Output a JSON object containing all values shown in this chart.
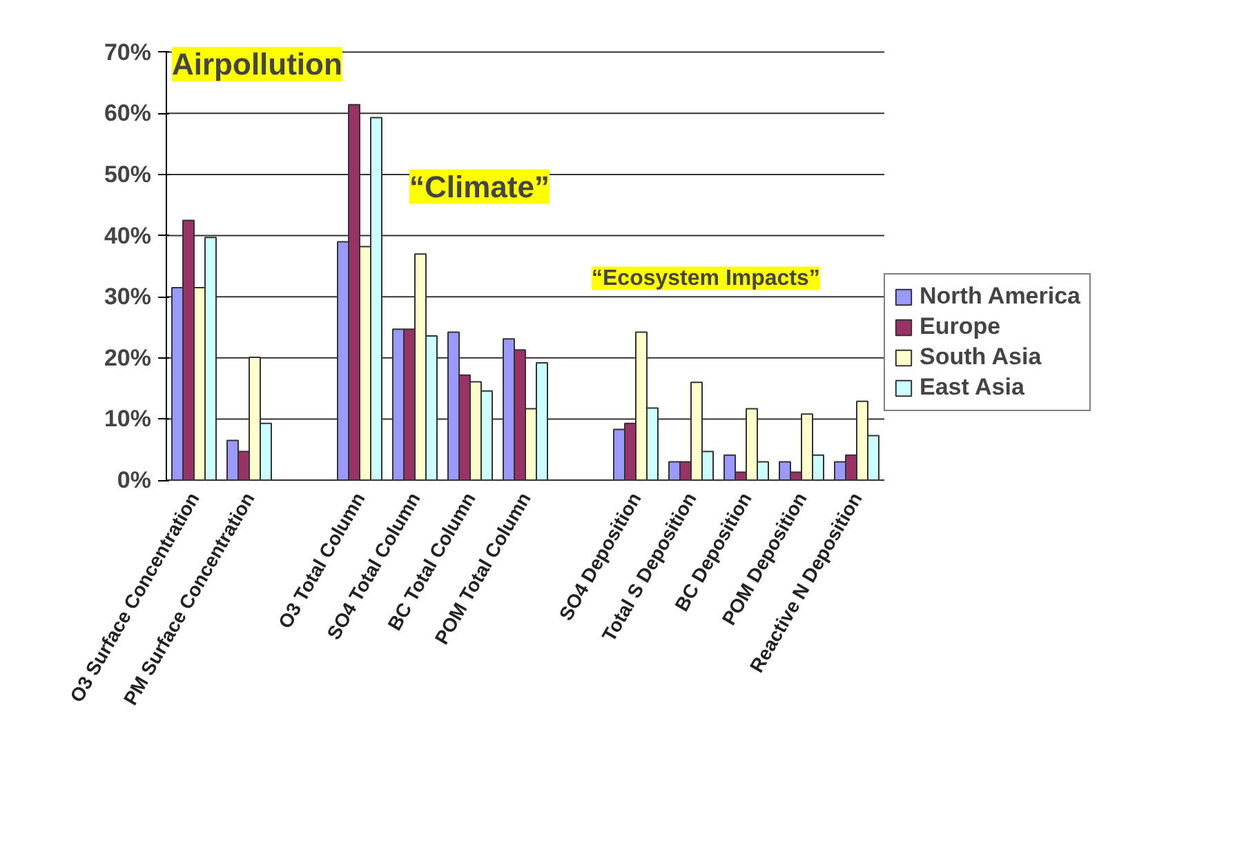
{
  "chart_data": {
    "type": "bar",
    "categories": [
      "O3 Surface Concentration",
      "PM Surface Concentration",
      null,
      "O3 Total Column",
      "SO4 Total Column",
      "BC Total Column",
      "POM Total Column",
      null,
      "SO4 Deposition",
      "Total S Deposition",
      "BC Deposition",
      "POM Deposition",
      "Reactive N Deposition"
    ],
    "series": [
      {
        "name": "North America",
        "color": "#9999ff",
        "values": [
          31.5,
          6.5,
          null,
          39,
          24.7,
          24.2,
          23.1,
          null,
          8.3,
          3.0,
          4.1,
          3.0,
          3.0
        ]
      },
      {
        "name": "Europe",
        "color": "#993366",
        "values": [
          42.5,
          4.7,
          null,
          61.4,
          24.7,
          17.2,
          21.3,
          null,
          9.3,
          3.0,
          1.3,
          1.3,
          4.1
        ]
      },
      {
        "name": "South Asia",
        "color": "#ffffcc",
        "values": [
          31.5,
          20.1,
          null,
          38.2,
          37,
          16.1,
          11.7,
          null,
          24.2,
          16.0,
          11.7,
          10.8,
          12.9
        ]
      },
      {
        "name": "East Asia",
        "color": "#ccffff",
        "values": [
          39.7,
          9.3,
          null,
          59.3,
          23.6,
          14.6,
          19.2,
          null,
          11.8,
          4.7,
          3.0,
          4.1,
          7.3
        ]
      }
    ],
    "ylim": [
      0,
      70
    ],
    "yticks": [
      {
        "value": 0,
        "label": "0%"
      },
      {
        "value": 10,
        "label": "10%"
      },
      {
        "value": 20,
        "label": "20%"
      },
      {
        "value": 30,
        "label": "30%"
      },
      {
        "value": 40,
        "label": "40%"
      },
      {
        "value": 50,
        "label": "50%"
      },
      {
        "value": 60,
        "label": "60%"
      },
      {
        "value": 70,
        "label": "70%"
      }
    ],
    "grid": "y",
    "legend": "right",
    "annotations": [
      "Airpollution",
      "“Climate”",
      "“Ecosystem Impacts”"
    ]
  }
}
